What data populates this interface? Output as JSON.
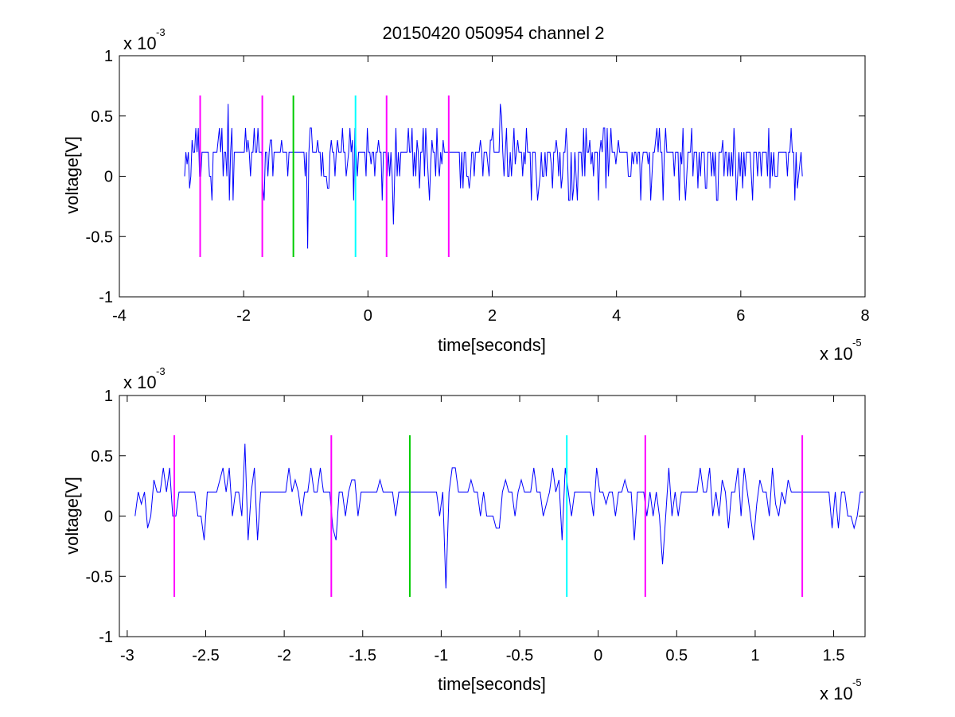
{
  "figure_title": "20150420 050954 channel 2",
  "colors": {
    "trace": "#0000ff",
    "marker_magenta": "#ff00ff",
    "marker_green": "#00cc00",
    "marker_cyan": "#00ffff",
    "axes": "#000000"
  },
  "chart_data": [
    {
      "type": "line",
      "title": "20150420 050954 channel 2",
      "xlabel": "time[seconds]",
      "ylabel": "voltage[V]",
      "x_exponent_label": "x 10",
      "x_exponent": "-5",
      "y_exponent_label": "x 10",
      "y_exponent": "-3",
      "xlim": [
        -4,
        8
      ],
      "ylim": [
        -1,
        1
      ],
      "x_ticks": [
        -4,
        -2,
        0,
        2,
        4,
        6,
        8
      ],
      "x_tick_labels": [
        "-4",
        "-2",
        "0",
        "2",
        "4",
        "6",
        "8"
      ],
      "y_ticks": [
        -1,
        -0.5,
        0,
        0.5,
        1
      ],
      "y_tick_labels": [
        "-1",
        "-0.5",
        "0",
        "0.5",
        "1"
      ],
      "grid": false,
      "trace": {
        "x_range": [
          -2.95,
          7.0
        ],
        "baseline": 0.2,
        "levels": [
          -0.2,
          -0.1,
          0,
          0.1,
          0.2,
          0.3,
          0.4
        ],
        "spikes": [
          {
            "x": -2.25,
            "y": 0.6
          },
          {
            "x": -0.97,
            "y": -0.6
          },
          {
            "x": 0.42,
            "y": -0.4
          },
          {
            "x": 2.12,
            "y": 0.6
          },
          {
            "x": 2.15,
            "y": 0.5
          },
          {
            "x": 2.35,
            "y": 0.4
          }
        ]
      },
      "markers": [
        {
          "x": -2.7,
          "color": "magenta"
        },
        {
          "x": -1.7,
          "color": "magenta"
        },
        {
          "x": -1.2,
          "color": "green"
        },
        {
          "x": -0.2,
          "color": "cyan"
        },
        {
          "x": 0.3,
          "color": "magenta"
        },
        {
          "x": 1.3,
          "color": "magenta"
        }
      ],
      "marker_range": [
        -0.67,
        0.67
      ]
    },
    {
      "type": "line",
      "xlabel": "time[seconds]",
      "ylabel": "voltage[V]",
      "x_exponent_label": "x 10",
      "x_exponent": "-5",
      "y_exponent_label": "x 10",
      "y_exponent": "-3",
      "xlim": [
        -3.05,
        1.7
      ],
      "ylim": [
        -1,
        1
      ],
      "x_ticks": [
        -3,
        -2.5,
        -2,
        -1.5,
        -1,
        -0.5,
        0,
        0.5,
        1,
        1.5
      ],
      "x_tick_labels": [
        "-3",
        "-2.5",
        "-2",
        "-1.5",
        "-1",
        "-0.5",
        "0",
        "0.5",
        "1",
        "1.5"
      ],
      "y_ticks": [
        -1,
        -0.5,
        0,
        0.5,
        1
      ],
      "y_tick_labels": [
        "-1",
        "-0.5",
        "0",
        "0.5",
        "1"
      ],
      "grid": false,
      "trace": {
        "x_range": [
          -2.95,
          1.7
        ],
        "baseline": 0.2,
        "levels": [
          -0.2,
          -0.1,
          0,
          0.1,
          0.2,
          0.3,
          0.4
        ],
        "spikes": [
          {
            "x": -2.25,
            "y": 0.6
          },
          {
            "x": -0.99,
            "y": -0.6
          },
          {
            "x": 0.42,
            "y": -0.4
          }
        ]
      },
      "markers": [
        {
          "x": -2.7,
          "color": "magenta"
        },
        {
          "x": -1.7,
          "color": "magenta"
        },
        {
          "x": -1.2,
          "color": "green"
        },
        {
          "x": -0.2,
          "color": "cyan"
        },
        {
          "x": 0.3,
          "color": "magenta"
        },
        {
          "x": 1.3,
          "color": "magenta"
        }
      ],
      "marker_range": [
        -0.67,
        0.67
      ]
    }
  ]
}
